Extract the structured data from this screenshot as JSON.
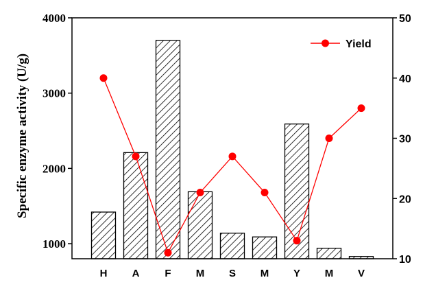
{
  "chart_data": {
    "type": "bar",
    "categories": [
      "H",
      "A",
      "F",
      "M",
      "S",
      "M",
      "Y",
      "M",
      "V"
    ],
    "series": [
      {
        "type": "bar",
        "axis": "left",
        "values": [
          1420,
          2210,
          3700,
          1690,
          1140,
          1090,
          2590,
          940,
          830
        ],
        "pattern": "diagonal-hatch"
      },
      {
        "name": "Yield",
        "type": "line",
        "axis": "right",
        "values": [
          40,
          27,
          11,
          21,
          27,
          21,
          13,
          30,
          35
        ],
        "color": "#ff0000",
        "marker": "circle"
      }
    ],
    "ylabel": "Specific enzyme activity (U/g)",
    "xlabel": "",
    "y_left": {
      "min": 800,
      "max": 4000,
      "ticks": [
        1000,
        2000,
        3000,
        4000
      ]
    },
    "y_right": {
      "min": 10,
      "max": 50,
      "ticks": [
        10,
        20,
        30,
        40,
        50
      ]
    },
    "legend": {
      "placement": "top-right",
      "entries": [
        "Yield"
      ]
    },
    "grid": false
  }
}
